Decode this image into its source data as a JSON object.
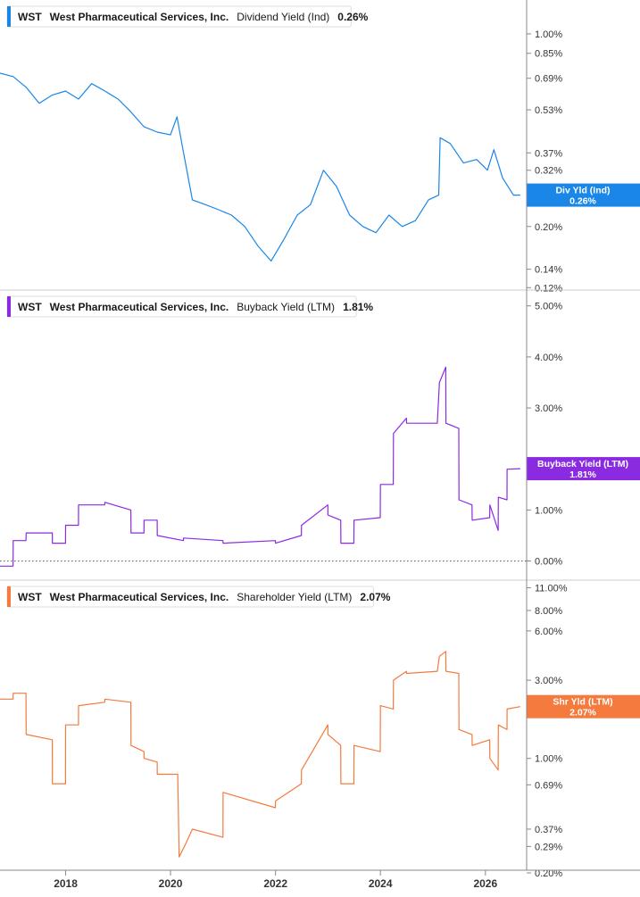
{
  "chart_data": [
    {
      "type": "line",
      "ticker": "WST",
      "company": "West Pharmaceutical Services, Inc.",
      "metric": "Dividend Yield (Ind)",
      "latest": "0.26%",
      "badge_label": "Div Yld (Ind)",
      "badge_value": "0.26%",
      "color": "#1a86e8",
      "scale": "log",
      "ylim": [
        0.115,
        1.25
      ],
      "yticks": [
        {
          "label": "1.00%",
          "value": 1.0
        },
        {
          "label": "0.85%",
          "value": 0.85
        },
        {
          "label": "0.69%",
          "value": 0.69
        },
        {
          "label": "0.53%",
          "value": 0.53
        },
        {
          "label": "0.37%",
          "value": 0.37
        },
        {
          "label": "0.32%",
          "value": 0.32
        },
        {
          "label": "0.20%",
          "value": 0.2
        },
        {
          "label": "0.14%",
          "value": 0.14
        },
        {
          "label": "0.12%",
          "value": 0.12
        }
      ],
      "series": [
        {
          "x": [
            "2016-10-01",
            "2017-01-01",
            "2017-04-01",
            "2017-07-01",
            "2017-10-01",
            "2018-01-01",
            "2018-04-01",
            "2018-07-01",
            "2018-10-01",
            "2019-01-01",
            "2019-04-01",
            "2019-07-01",
            "2019-10-01",
            "2020-01-01",
            "2020-02-15",
            "2020-03-20",
            "2020-06-01",
            "2020-09-01",
            "2020-12-01",
            "2021-03-01",
            "2021-06-01",
            "2021-09-01",
            "2021-12-01",
            "2022-03-01",
            "2022-06-01",
            "2022-09-01",
            "2022-12-01",
            "2023-03-01",
            "2023-06-01",
            "2023-09-01",
            "2023-12-01",
            "2024-03-01",
            "2024-06-01",
            "2024-09-01",
            "2024-12-01",
            "2025-02-10",
            "2025-02-20",
            "2025-05-01",
            "2025-08-01",
            "2025-11-01",
            "2026-01-15",
            "2026-03-01",
            "2026-05-01",
            "2026-07-15",
            "2026-09-01"
          ],
          "y": [
            0.72,
            0.7,
            0.64,
            0.56,
            0.6,
            0.62,
            0.58,
            0.66,
            0.62,
            0.58,
            0.52,
            0.46,
            0.44,
            0.43,
            0.5,
            0.4,
            0.25,
            0.24,
            0.23,
            0.22,
            0.2,
            0.17,
            0.15,
            0.18,
            0.22,
            0.24,
            0.32,
            0.28,
            0.22,
            0.2,
            0.19,
            0.22,
            0.2,
            0.21,
            0.25,
            0.26,
            0.42,
            0.4,
            0.34,
            0.35,
            0.32,
            0.38,
            0.3,
            0.26,
            0.26
          ]
        }
      ]
    },
    {
      "type": "line",
      "ticker": "WST",
      "company": "West Pharmaceutical Services, Inc.",
      "metric": "Buyback Yield (LTM)",
      "latest": "1.81%",
      "badge_label": "Buyback Yield (LTM)",
      "badge_value": "1.81%",
      "color": "#8a2be2",
      "scale": "linear",
      "ylim": [
        -0.2,
        5.1
      ],
      "zero_line": true,
      "yticks": [
        {
          "label": "5.00%",
          "value": 5.0
        },
        {
          "label": "4.00%",
          "value": 4.0
        },
        {
          "label": "3.00%",
          "value": 3.0
        },
        {
          "label": "1.00%",
          "value": 1.0
        },
        {
          "label": "0.00%",
          "value": 0.0
        }
      ],
      "series": [
        {
          "x": [
            "2016-10-01",
            "2016-12-31",
            "2017-01-01",
            "2017-03-31",
            "2017-04-01",
            "2017-09-30",
            "2017-10-01",
            "2017-12-31",
            "2018-01-01",
            "2018-03-31",
            "2018-04-01",
            "2018-09-30",
            "2018-10-01",
            "2019-03-31",
            "2019-04-01",
            "2019-06-30",
            "2019-07-01",
            "2019-09-30",
            "2019-10-01",
            "2020-03-31",
            "2020-04-01",
            "2020-12-31",
            "2021-01-01",
            "2021-12-31",
            "2022-01-01",
            "2022-06-30",
            "2022-07-01",
            "2022-12-31",
            "2023-01-01",
            "2023-03-31",
            "2023-04-01",
            "2023-06-30",
            "2023-07-01",
            "2023-12-31",
            "2024-01-01",
            "2024-03-31",
            "2024-04-01",
            "2024-06-30",
            "2024-07-01",
            "2025-01-31",
            "2025-02-15",
            "2025-03-31",
            "2025-04-01",
            "2025-06-30",
            "2025-07-01",
            "2025-09-30",
            "2025-10-01",
            "2026-01-31",
            "2026-02-01",
            "2026-03-31",
            "2026-04-01",
            "2026-05-31",
            "2026-06-01",
            "2026-09-01"
          ],
          "y": [
            -0.1,
            -0.1,
            0.4,
            0.4,
            0.55,
            0.55,
            0.35,
            0.35,
            0.7,
            0.7,
            1.1,
            1.1,
            1.15,
            1.0,
            0.55,
            0.55,
            0.8,
            0.8,
            0.5,
            0.4,
            0.45,
            0.4,
            0.35,
            0.4,
            0.35,
            0.5,
            0.7,
            1.1,
            0.9,
            0.8,
            0.35,
            0.35,
            0.8,
            0.85,
            1.5,
            1.5,
            2.5,
            2.8,
            2.7,
            2.7,
            3.5,
            3.8,
            2.7,
            2.6,
            1.2,
            1.1,
            0.8,
            0.85,
            1.1,
            0.6,
            1.25,
            1.2,
            1.8,
            1.81
          ]
        }
      ]
    },
    {
      "type": "line",
      "ticker": "WST",
      "company": "West Pharmaceutical Services, Inc.",
      "metric": "Shareholder Yield (LTM)",
      "latest": "2.07%",
      "badge_label": "Shr Yld (LTM)",
      "badge_value": "2.07%",
      "color": "#f47a3e",
      "scale": "log",
      "ylim": [
        0.2,
        11.5
      ],
      "yticks": [
        {
          "label": "11.00%",
          "value": 11.0
        },
        {
          "label": "8.00%",
          "value": 8.0
        },
        {
          "label": "6.00%",
          "value": 6.0
        },
        {
          "label": "3.00%",
          "value": 3.0
        },
        {
          "label": "1.00%",
          "value": 1.0
        },
        {
          "label": "0.69%",
          "value": 0.69
        },
        {
          "label": "0.37%",
          "value": 0.37
        },
        {
          "label": "0.29%",
          "value": 0.29
        },
        {
          "label": "0.20%",
          "value": 0.2
        }
      ],
      "series": [
        {
          "x": [
            "2016-10-01",
            "2016-12-31",
            "2017-01-01",
            "2017-03-31",
            "2017-04-01",
            "2017-09-30",
            "2017-10-01",
            "2017-12-31",
            "2018-01-01",
            "2018-03-31",
            "2018-04-01",
            "2018-09-30",
            "2018-10-01",
            "2019-03-31",
            "2019-04-01",
            "2019-06-30",
            "2019-07-01",
            "2019-09-30",
            "2019-10-01",
            "2020-02-20",
            "2020-03-01",
            "2020-04-15",
            "2020-06-01",
            "2020-12-31",
            "2021-01-01",
            "2021-12-31",
            "2022-01-01",
            "2022-06-30",
            "2022-07-01",
            "2022-12-31",
            "2023-01-01",
            "2023-03-31",
            "2023-04-01",
            "2023-06-30",
            "2023-07-01",
            "2023-12-31",
            "2024-01-01",
            "2024-03-31",
            "2024-04-01",
            "2024-06-30",
            "2024-07-01",
            "2025-01-31",
            "2025-02-15",
            "2025-03-31",
            "2025-04-01",
            "2025-06-30",
            "2025-07-01",
            "2025-09-30",
            "2025-10-01",
            "2026-01-31",
            "2026-02-01",
            "2026-03-31",
            "2026-04-01",
            "2026-05-31",
            "2026-06-01",
            "2026-09-01"
          ],
          "y": [
            2.3,
            2.3,
            2.5,
            2.5,
            1.4,
            1.3,
            0.7,
            0.7,
            1.6,
            1.6,
            2.1,
            2.2,
            2.3,
            2.2,
            1.2,
            1.1,
            1.0,
            0.95,
            0.8,
            0.8,
            0.25,
            0.3,
            0.37,
            0.33,
            0.62,
            0.5,
            0.55,
            0.7,
            0.85,
            1.6,
            1.4,
            1.2,
            0.7,
            0.7,
            1.2,
            1.1,
            2.1,
            2.0,
            3.0,
            3.4,
            3.3,
            3.4,
            4.2,
            4.5,
            3.4,
            3.3,
            1.5,
            1.4,
            1.2,
            1.3,
            1.0,
            0.85,
            1.6,
            1.5,
            2.0,
            2.07
          ]
        }
      ]
    }
  ],
  "x_axis": {
    "type": "date",
    "range": [
      "2016-10-01",
      "2026-10-15"
    ],
    "ticks": [
      {
        "label": "2018",
        "value": "2018-01-01"
      },
      {
        "label": "2020",
        "value": "2020-01-01"
      },
      {
        "label": "2022",
        "value": "2022-01-01"
      },
      {
        "label": "2024",
        "value": "2024-01-01"
      },
      {
        "label": "2026",
        "value": "2026-01-01"
      }
    ]
  }
}
